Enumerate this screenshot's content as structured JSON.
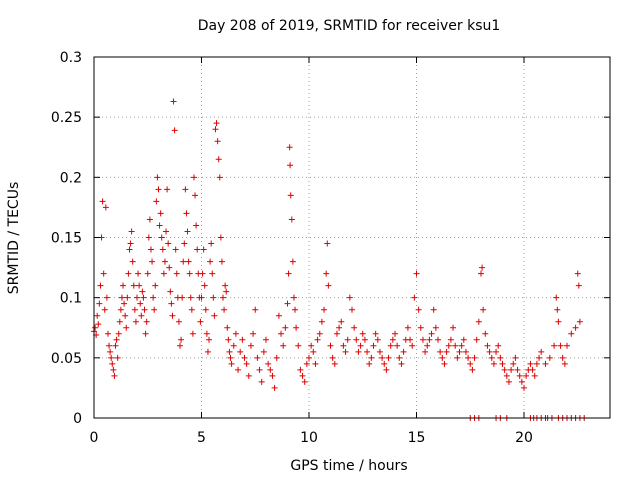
{
  "chart_data": {
    "type": "scatter",
    "title": "Day 208 of 2019, SRMTID for receiver ksu1",
    "xlabel": "GPS time / hours",
    "ylabel": "SRMTID / TECUs",
    "xlim": [
      0,
      24
    ],
    "ylim": [
      0,
      0.3
    ],
    "xticks": [
      0,
      5,
      10,
      15,
      20
    ],
    "xtick_labels": [
      "0",
      "5",
      "10",
      "15",
      "20"
    ],
    "yticks": [
      0,
      0.05,
      0.1,
      0.15,
      0.2,
      0.25,
      0.3
    ],
    "ytick_labels": [
      "0",
      "0.05",
      "0.1",
      "0.15",
      "0.2",
      "0.25",
      "0.3"
    ],
    "grid": true,
    "marker": "+",
    "color": "#e00000",
    "series": [
      {
        "name": "ksu1",
        "points": [
          [
            0.0,
            0.072
          ],
          [
            0.05,
            0.075
          ],
          [
            0.1,
            0.069
          ],
          [
            0.15,
            0.085
          ],
          [
            0.2,
            0.078
          ],
          [
            0.25,
            0.095
          ],
          [
            0.3,
            0.11
          ],
          [
            0.35,
            0.15
          ],
          [
            0.4,
            0.18
          ],
          [
            0.45,
            0.12
          ],
          [
            0.5,
            0.09
          ],
          [
            0.55,
            0.175
          ],
          [
            0.6,
            0.1
          ],
          [
            0.65,
            0.07
          ],
          [
            0.7,
            0.06
          ],
          [
            0.75,
            0.055
          ],
          [
            0.8,
            0.05
          ],
          [
            0.85,
            0.045
          ],
          [
            0.9,
            0.04
          ],
          [
            0.95,
            0.035
          ],
          [
            1.0,
            0.06
          ],
          [
            1.05,
            0.065
          ],
          [
            1.1,
            0.05
          ],
          [
            1.15,
            0.07
          ],
          [
            1.2,
            0.08
          ],
          [
            1.25,
            0.09
          ],
          [
            1.3,
            0.1
          ],
          [
            1.35,
            0.11
          ],
          [
            1.4,
            0.095
          ],
          [
            1.45,
            0.085
          ],
          [
            1.5,
            0.075
          ],
          [
            1.55,
            0.1
          ],
          [
            1.6,
            0.12
          ],
          [
            1.65,
            0.14
          ],
          [
            1.7,
            0.145
          ],
          [
            1.75,
            0.155
          ],
          [
            1.8,
            0.13
          ],
          [
            1.85,
            0.11
          ],
          [
            1.9,
            0.09
          ],
          [
            1.95,
            0.08
          ],
          [
            2.0,
            0.1
          ],
          [
            2.05,
            0.12
          ],
          [
            2.1,
            0.11
          ],
          [
            2.15,
            0.095
          ],
          [
            2.2,
            0.085
          ],
          [
            2.25,
            0.105
          ],
          [
            2.3,
            0.1
          ],
          [
            2.35,
            0.09
          ],
          [
            2.4,
            0.07
          ],
          [
            2.45,
            0.08
          ],
          [
            2.5,
            0.12
          ],
          [
            2.55,
            0.15
          ],
          [
            2.6,
            0.165
          ],
          [
            2.65,
            0.14
          ],
          [
            2.7,
            0.13
          ],
          [
            2.75,
            0.1
          ],
          [
            2.8,
            0.09
          ],
          [
            2.85,
            0.11
          ],
          [
            2.9,
            0.18
          ],
          [
            2.95,
            0.2
          ],
          [
            3.0,
            0.19
          ],
          [
            3.05,
            0.16
          ],
          [
            3.1,
            0.17
          ],
          [
            3.15,
            0.15
          ],
          [
            3.2,
            0.14
          ],
          [
            3.25,
            0.12
          ],
          [
            3.3,
            0.13
          ],
          [
            3.35,
            0.155
          ],
          [
            3.4,
            0.19
          ],
          [
            3.45,
            0.145
          ],
          [
            3.5,
            0.125
          ],
          [
            3.55,
            0.105
          ],
          [
            3.6,
            0.095
          ],
          [
            3.65,
            0.085
          ],
          [
            3.7,
            0.263
          ],
          [
            3.75,
            0.239
          ],
          [
            3.8,
            0.14
          ],
          [
            3.85,
            0.12
          ],
          [
            3.9,
            0.1
          ],
          [
            3.95,
            0.08
          ],
          [
            4.0,
            0.06
          ],
          [
            4.05,
            0.065
          ],
          [
            4.1,
            0.1
          ],
          [
            4.15,
            0.13
          ],
          [
            4.2,
            0.145
          ],
          [
            4.25,
            0.19
          ],
          [
            4.3,
            0.17
          ],
          [
            4.35,
            0.155
          ],
          [
            4.4,
            0.13
          ],
          [
            4.45,
            0.12
          ],
          [
            4.5,
            0.1
          ],
          [
            4.55,
            0.09
          ],
          [
            4.6,
            0.07
          ],
          [
            4.65,
            0.2
          ],
          [
            4.7,
            0.185
          ],
          [
            4.75,
            0.16
          ],
          [
            4.8,
            0.14
          ],
          [
            4.85,
            0.12
          ],
          [
            4.9,
            0.1
          ],
          [
            4.95,
            0.08
          ],
          [
            5.0,
            0.1
          ],
          [
            5.05,
            0.12
          ],
          [
            5.1,
            0.14
          ],
          [
            5.15,
            0.11
          ],
          [
            5.2,
            0.09
          ],
          [
            5.25,
            0.07
          ],
          [
            5.3,
            0.055
          ],
          [
            5.35,
            0.065
          ],
          [
            5.4,
            0.13
          ],
          [
            5.45,
            0.145
          ],
          [
            5.5,
            0.12
          ],
          [
            5.55,
            0.1
          ],
          [
            5.6,
            0.085
          ],
          [
            5.65,
            0.24
          ],
          [
            5.7,
            0.245
          ],
          [
            5.75,
            0.23
          ],
          [
            5.8,
            0.215
          ],
          [
            5.85,
            0.2
          ],
          [
            5.9,
            0.15
          ],
          [
            5.95,
            0.13
          ],
          [
            6.0,
            0.1
          ],
          [
            6.05,
            0.09
          ],
          [
            6.1,
            0.11
          ],
          [
            6.15,
            0.105
          ],
          [
            6.2,
            0.075
          ],
          [
            6.25,
            0.065
          ],
          [
            6.3,
            0.055
          ],
          [
            6.35,
            0.05
          ],
          [
            6.4,
            0.045
          ],
          [
            6.5,
            0.06
          ],
          [
            6.6,
            0.07
          ],
          [
            6.7,
            0.04
          ],
          [
            6.8,
            0.055
          ],
          [
            6.9,
            0.065
          ],
          [
            7.0,
            0.05
          ],
          [
            7.1,
            0.045
          ],
          [
            7.2,
            0.035
          ],
          [
            7.3,
            0.06
          ],
          [
            7.4,
            0.07
          ],
          [
            7.5,
            0.09
          ],
          [
            7.6,
            0.05
          ],
          [
            7.7,
            0.04
          ],
          [
            7.8,
            0.03
          ],
          [
            7.9,
            0.055
          ],
          [
            8.0,
            0.065
          ],
          [
            8.1,
            0.045
          ],
          [
            8.2,
            0.04
          ],
          [
            8.3,
            0.035
          ],
          [
            8.4,
            0.025
          ],
          [
            8.5,
            0.05
          ],
          [
            8.6,
            0.085
          ],
          [
            8.7,
            0.07
          ],
          [
            8.8,
            0.06
          ],
          [
            8.9,
            0.075
          ],
          [
            9.0,
            0.095
          ],
          [
            9.05,
            0.12
          ],
          [
            9.1,
            0.225
          ],
          [
            9.12,
            0.21
          ],
          [
            9.15,
            0.185
          ],
          [
            9.2,
            0.165
          ],
          [
            9.25,
            0.13
          ],
          [
            9.3,
            0.1
          ],
          [
            9.35,
            0.09
          ],
          [
            9.4,
            0.075
          ],
          [
            9.5,
            0.06
          ],
          [
            9.6,
            0.04
          ],
          [
            9.7,
            0.035
          ],
          [
            9.8,
            0.03
          ],
          [
            9.9,
            0.045
          ],
          [
            10.0,
            0.05
          ],
          [
            10.1,
            0.06
          ],
          [
            10.2,
            0.055
          ],
          [
            10.3,
            0.045
          ],
          [
            10.4,
            0.065
          ],
          [
            10.5,
            0.07
          ],
          [
            10.6,
            0.08
          ],
          [
            10.7,
            0.09
          ],
          [
            10.8,
            0.12
          ],
          [
            10.85,
            0.145
          ],
          [
            10.9,
            0.11
          ],
          [
            11.0,
            0.06
          ],
          [
            11.1,
            0.05
          ],
          [
            11.2,
            0.045
          ],
          [
            11.3,
            0.07
          ],
          [
            11.4,
            0.075
          ],
          [
            11.5,
            0.08
          ],
          [
            11.6,
            0.06
          ],
          [
            11.7,
            0.055
          ],
          [
            11.8,
            0.065
          ],
          [
            11.9,
            0.1
          ],
          [
            12.0,
            0.09
          ],
          [
            12.1,
            0.075
          ],
          [
            12.2,
            0.065
          ],
          [
            12.3,
            0.055
          ],
          [
            12.4,
            0.06
          ],
          [
            12.5,
            0.07
          ],
          [
            12.6,
            0.065
          ],
          [
            12.7,
            0.055
          ],
          [
            12.8,
            0.045
          ],
          [
            12.9,
            0.05
          ],
          [
            13.0,
            0.06
          ],
          [
            13.1,
            0.07
          ],
          [
            13.2,
            0.065
          ],
          [
            13.3,
            0.055
          ],
          [
            13.4,
            0.05
          ],
          [
            13.5,
            0.045
          ],
          [
            13.6,
            0.04
          ],
          [
            13.7,
            0.05
          ],
          [
            13.8,
            0.06
          ],
          [
            13.9,
            0.065
          ],
          [
            14.0,
            0.07
          ],
          [
            14.1,
            0.06
          ],
          [
            14.2,
            0.05
          ],
          [
            14.3,
            0.045
          ],
          [
            14.4,
            0.055
          ],
          [
            14.5,
            0.065
          ],
          [
            14.6,
            0.075
          ],
          [
            14.7,
            0.065
          ],
          [
            14.8,
            0.06
          ],
          [
            14.9,
            0.1
          ],
          [
            15.0,
            0.12
          ],
          [
            15.1,
            0.09
          ],
          [
            15.2,
            0.075
          ],
          [
            15.3,
            0.065
          ],
          [
            15.4,
            0.055
          ],
          [
            15.5,
            0.06
          ],
          [
            15.6,
            0.065
          ],
          [
            15.7,
            0.07
          ],
          [
            15.8,
            0.09
          ],
          [
            15.9,
            0.075
          ],
          [
            16.0,
            0.065
          ],
          [
            16.1,
            0.055
          ],
          [
            16.2,
            0.05
          ],
          [
            16.3,
            0.045
          ],
          [
            16.4,
            0.055
          ],
          [
            16.5,
            0.06
          ],
          [
            16.6,
            0.065
          ],
          [
            16.7,
            0.075
          ],
          [
            16.8,
            0.06
          ],
          [
            16.9,
            0.05
          ],
          [
            17.0,
            0.055
          ],
          [
            17.1,
            0.06
          ],
          [
            17.2,
            0.065
          ],
          [
            17.3,
            0.055
          ],
          [
            17.4,
            0.05
          ],
          [
            17.5,
            0.045
          ],
          [
            17.6,
            0.04
          ],
          [
            17.7,
            0.05
          ],
          [
            17.8,
            0.065
          ],
          [
            17.9,
            0.08
          ],
          [
            18.0,
            0.12
          ],
          [
            18.05,
            0.125
          ],
          [
            18.1,
            0.09
          ],
          [
            18.2,
            0.07
          ],
          [
            18.3,
            0.06
          ],
          [
            18.4,
            0.055
          ],
          [
            18.5,
            0.05
          ],
          [
            18.6,
            0.045
          ],
          [
            18.7,
            0.055
          ],
          [
            18.8,
            0.06
          ],
          [
            18.9,
            0.05
          ],
          [
            19.0,
            0.045
          ],
          [
            19.1,
            0.04
          ],
          [
            19.2,
            0.035
          ],
          [
            19.3,
            0.03
          ],
          [
            19.4,
            0.04
          ],
          [
            19.5,
            0.045
          ],
          [
            19.6,
            0.05
          ],
          [
            19.7,
            0.04
          ],
          [
            19.8,
            0.035
          ],
          [
            19.9,
            0.03
          ],
          [
            20.0,
            0.025
          ],
          [
            20.1,
            0.035
          ],
          [
            20.2,
            0.04
          ],
          [
            20.3,
            0.045
          ],
          [
            20.4,
            0.04
          ],
          [
            20.5,
            0.035
          ],
          [
            20.6,
            0.045
          ],
          [
            20.7,
            0.05
          ],
          [
            20.8,
            0.055
          ],
          [
            21.0,
            0.045
          ],
          [
            21.2,
            0.05
          ],
          [
            21.4,
            0.06
          ],
          [
            21.5,
            0.1
          ],
          [
            21.55,
            0.09
          ],
          [
            21.6,
            0.08
          ],
          [
            21.7,
            0.06
          ],
          [
            21.8,
            0.05
          ],
          [
            21.9,
            0.045
          ],
          [
            22.0,
            0.06
          ],
          [
            22.2,
            0.07
          ],
          [
            22.4,
            0.075
          ],
          [
            22.5,
            0.12
          ],
          [
            22.55,
            0.11
          ],
          [
            22.6,
            0.08
          ],
          [
            17.5,
            0.0
          ],
          [
            17.7,
            0.0
          ],
          [
            17.9,
            0.0
          ],
          [
            18.7,
            0.0
          ],
          [
            18.9,
            0.0
          ],
          [
            19.2,
            0.0
          ],
          [
            20.3,
            0.0
          ],
          [
            20.45,
            0.0
          ],
          [
            20.6,
            0.0
          ],
          [
            20.8,
            0.0
          ],
          [
            21.0,
            0.0
          ],
          [
            21.1,
            0.0
          ],
          [
            21.3,
            0.0
          ],
          [
            21.6,
            0.0
          ],
          [
            21.8,
            0.0
          ],
          [
            22.0,
            0.0
          ],
          [
            22.2,
            0.0
          ],
          [
            22.4,
            0.0
          ],
          [
            22.6,
            0.0
          ],
          [
            22.8,
            0.0
          ]
        ]
      }
    ]
  }
}
